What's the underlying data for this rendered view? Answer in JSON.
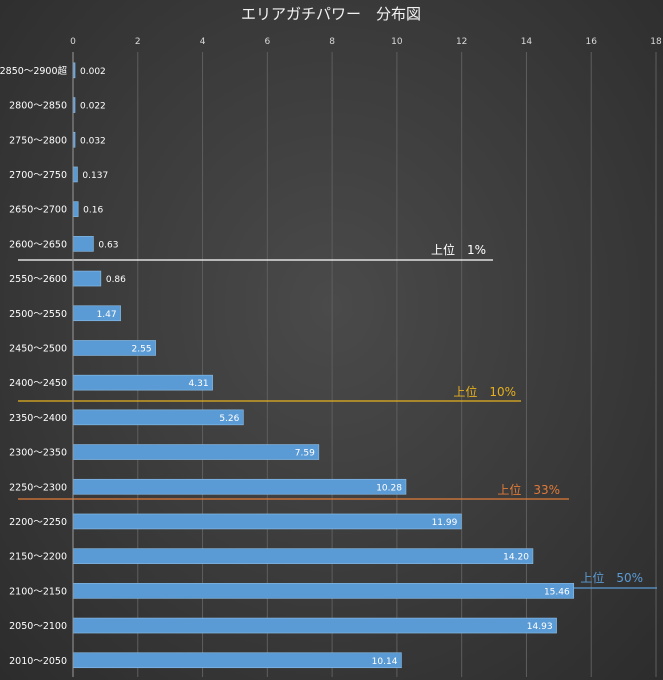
{
  "chart_data": {
    "type": "bar",
    "orientation": "horizontal",
    "title": "エリアガチパワー　分布図",
    "xlabel": "",
    "ylabel": "",
    "xlim": [
      0,
      18
    ],
    "xticks": [
      0,
      2,
      4,
      6,
      8,
      10,
      12,
      14,
      16,
      18
    ],
    "grid": "vertical",
    "legend": "none",
    "bar_color": "#5b9bd5",
    "categories": [
      "2850～2900超",
      "2800～2850",
      "2750～2800",
      "2700～2750",
      "2650～2700",
      "2600～2650",
      "2550～2600",
      "2500～2550",
      "2450～2500",
      "2400～2450",
      "2350～2400",
      "2300～2350",
      "2250～2300",
      "2200～2250",
      "2150～2200",
      "2100～2150",
      "2050～2100",
      "2010～2050"
    ],
    "values": [
      0.002,
      0.022,
      0.032,
      0.137,
      0.16,
      0.63,
      0.86,
      1.47,
      2.55,
      4.31,
      5.26,
      7.59,
      10.28,
      11.99,
      14.2,
      15.46,
      14.93,
      10.14
    ],
    "value_labels": [
      "0.002",
      "0.022",
      "0.032",
      "0.137",
      "0.16",
      "0.63",
      "0.86",
      "1.47",
      "2.55",
      "4.31",
      "5.26",
      "7.59",
      "10.28",
      "11.99",
      "14.20",
      "15.46",
      "14.93",
      "10.14"
    ],
    "annotations": [
      {
        "label": "上位　1%",
        "between": [
          "2600～2650",
          "2550～2600"
        ],
        "color": "#ffffff"
      },
      {
        "label": "上位　10%",
        "between": [
          "2400～2450",
          "2350～2400"
        ],
        "color": "#e6b01e"
      },
      {
        "label": "上位　33%",
        "between": [
          "2250～2300",
          "2200～2250"
        ],
        "color": "#e07b39"
      },
      {
        "label": "上位　50%",
        "between": [
          "2150～2200",
          "2100～2150"
        ],
        "color": "#5b9bd5"
      }
    ]
  }
}
